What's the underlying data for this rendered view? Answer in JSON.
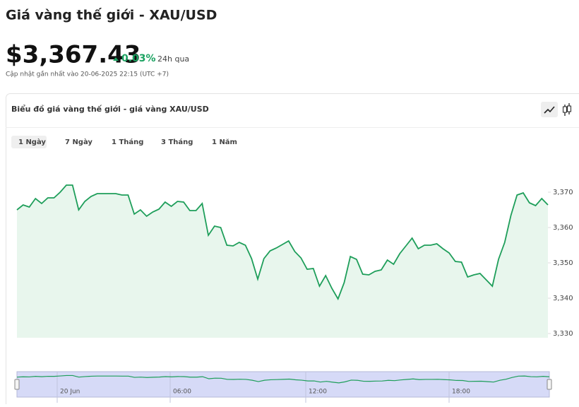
{
  "header": {
    "title": "Giá vàng thế giới - XAU/USD",
    "price": "$3,367.43",
    "change": "0.03%",
    "period": "24h qua",
    "updated": "Cập nhật gần nhất vào 20-06-2025 22:15 (UTC +7)"
  },
  "card": {
    "title": "Biểu đồ giá vàng thế giới - giá vàng XAU/USD",
    "tabs": [
      "1 Ngày",
      "7 Ngày",
      "1 Tháng",
      "3 Tháng",
      "1 Năm"
    ],
    "active_tab": 0
  },
  "chart_data": {
    "type": "area",
    "color": "#1e9e5a",
    "fill": "#e8f6ed",
    "values": [
      3365.0,
      3366.4,
      3365.8,
      3368.2,
      3366.8,
      3368.4,
      3368.4,
      3370.0,
      3372.0,
      3372.0,
      3365.0,
      3367.4,
      3368.8,
      3369.6,
      3369.6,
      3369.6,
      3369.6,
      3369.2,
      3369.2,
      3363.8,
      3365.0,
      3363.2,
      3364.4,
      3365.2,
      3367.2,
      3366.0,
      3367.4,
      3367.2,
      3364.8,
      3364.8,
      3366.8,
      3357.8,
      3360.4,
      3360.0,
      3355.0,
      3354.8,
      3355.8,
      3355.0,
      3351.2,
      3345.4,
      3351.2,
      3353.4,
      3354.2,
      3355.2,
      3356.2,
      3353.2,
      3351.4,
      3348.2,
      3348.4,
      3343.4,
      3346.4,
      3342.8,
      3339.8,
      3344.4,
      3351.8,
      3351.0,
      3346.8,
      3346.6,
      3347.6,
      3348.0,
      3350.8,
      3349.6,
      3352.6,
      3354.8,
      3357.0,
      3354.0,
      3355.0,
      3355.0,
      3355.4,
      3354.0,
      3352.8,
      3350.4,
      3350.2,
      3346.0,
      3346.6,
      3347.0,
      3345.2,
      3343.4,
      3351.0,
      3355.8,
      3363.4,
      3369.2,
      3369.8,
      3367.0,
      3366.2,
      3368.2,
      3366.4
    ],
    "ylim": [
      3328.8,
      3376.4
    ],
    "yticks": [
      {
        "value": 3330,
        "label": "3,330"
      },
      {
        "value": 3340,
        "label": "3,340"
      },
      {
        "value": 3350,
        "label": "3,350"
      },
      {
        "value": 3360,
        "label": "3,360"
      },
      {
        "value": 3370,
        "label": "3,370"
      }
    ],
    "navigator_labels": [
      "20 Jun",
      "06:00",
      "12:00",
      "18:00"
    ]
  }
}
